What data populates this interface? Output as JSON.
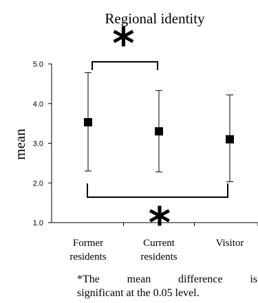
{
  "chart_data": {
    "type": "scatter",
    "title": "Regional identity",
    "xlabel": "",
    "ylabel": "mean",
    "ylim": [
      1.0,
      5.0
    ],
    "yticks": [
      "1.0",
      "2.0",
      "3.0",
      "4.0",
      "5.0"
    ],
    "grid": false,
    "categories": [
      [
        "Former",
        "residents"
      ],
      [
        "Current",
        "residents"
      ],
      [
        "Visitor"
      ]
    ],
    "series": [
      {
        "values": [
          3.53,
          3.3,
          3.1
        ],
        "error_low": [
          2.3,
          2.28,
          2.03
        ],
        "error_high": [
          4.78,
          4.33,
          4.22
        ]
      }
    ],
    "significance": [
      {
        "from": 0,
        "to": 1,
        "marker": "*"
      },
      {
        "from": 0,
        "to": 2,
        "marker": "*"
      }
    ],
    "marker_color": "#000000"
  },
  "footnote": {
    "line1_words": [
      "*The",
      "mean",
      "difference",
      "is"
    ],
    "line2": "significant at the 0.05 level."
  }
}
